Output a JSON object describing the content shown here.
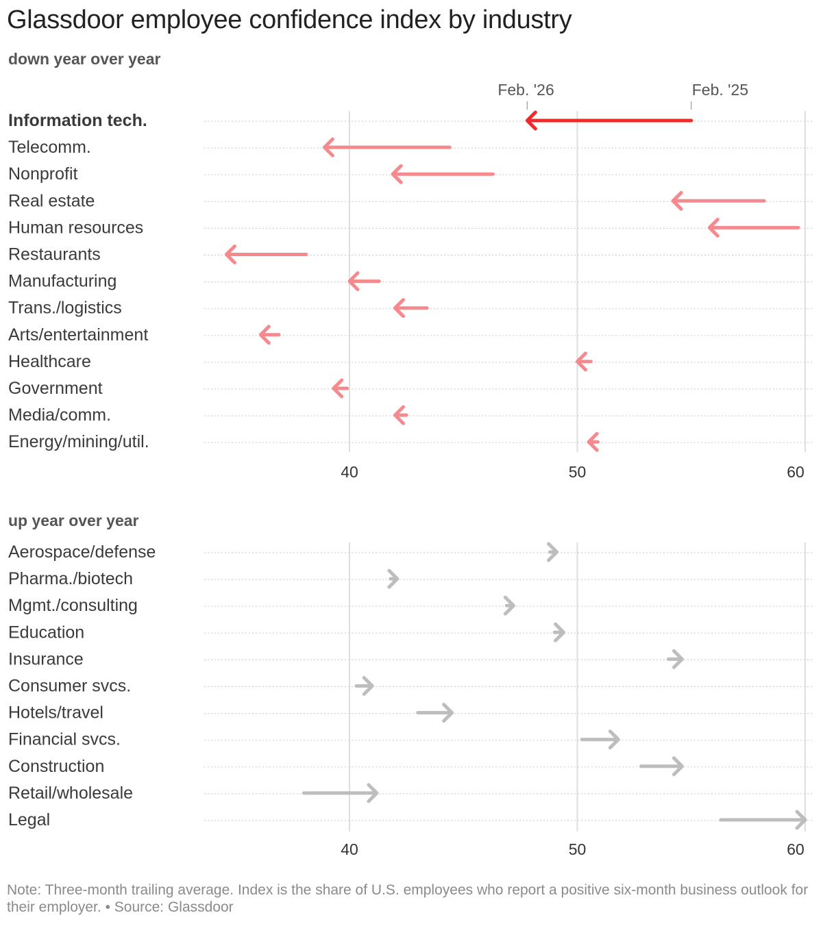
{
  "title": "Glassdoor employee confidence index by industry",
  "note": "Note: Three-month trailing average. Index is the share of U.S. employees who report a positive six-month business outlook for their employer. • Source: Glassdoor",
  "colors": {
    "highlight": "#ee2a2a",
    "down": "#f48a8e",
    "up": "#bdbdbd",
    "grid": "#dedede",
    "rowline": "#d0d0d0"
  },
  "chart_data": [
    {
      "type": "arrow",
      "section_label": "down year over year",
      "legend": {
        "end_label": "Feb. '26",
        "start_label": "Feb. '25"
      },
      "x_ticks": [
        40,
        50,
        60
      ],
      "xlim": [
        33.5,
        60.5
      ],
      "series": [
        {
          "category": "Information tech.",
          "feb25": 55.0,
          "feb26": 47.8,
          "highlight": true
        },
        {
          "category": "Telecomm.",
          "feb25": 44.4,
          "feb26": 38.9
        },
        {
          "category": "Nonprofit",
          "feb25": 46.3,
          "feb26": 41.9
        },
        {
          "category": "Real estate",
          "feb25": 58.2,
          "feb26": 54.2
        },
        {
          "category": "Human resources",
          "feb25": 59.7,
          "feb26": 55.8
        },
        {
          "category": "Restaurants",
          "feb25": 38.1,
          "feb26": 34.6
        },
        {
          "category": "Manufacturing",
          "feb25": 41.3,
          "feb26": 40.0
        },
        {
          "category": "Trans./logistics",
          "feb25": 43.4,
          "feb26": 42.0
        },
        {
          "category": "Arts/entertainment",
          "feb25": 36.9,
          "feb26": 36.1
        },
        {
          "category": "Healthcare",
          "feb25": 50.6,
          "feb26": 50.0
        },
        {
          "category": "Government",
          "feb25": 39.9,
          "feb26": 39.3
        },
        {
          "category": "Media/comm.",
          "feb25": 42.5,
          "feb26": 42.0
        },
        {
          "category": "Energy/mining/util.",
          "feb25": 50.9,
          "feb26": 50.5
        }
      ]
    },
    {
      "type": "arrow",
      "section_label": "up year over year",
      "x_ticks": [
        40,
        50,
        60
      ],
      "xlim": [
        33.5,
        60.5
      ],
      "series": [
        {
          "category": "Aerospace/defense",
          "feb25": 48.8,
          "feb26": 49.1
        },
        {
          "category": "Pharma./biotech",
          "feb25": 41.8,
          "feb26": 42.1
        },
        {
          "category": "Mgmt./consulting",
          "feb25": 46.9,
          "feb26": 47.2
        },
        {
          "category": "Education",
          "feb25": 49.0,
          "feb26": 49.4
        },
        {
          "category": "Insurance",
          "feb25": 54.0,
          "feb26": 54.6
        },
        {
          "category": "Consumer svcs.",
          "feb25": 40.3,
          "feb26": 41.0
        },
        {
          "category": "Hotels/travel",
          "feb25": 43.0,
          "feb26": 44.5
        },
        {
          "category": "Financial svcs.",
          "feb25": 50.2,
          "feb26": 51.8
        },
        {
          "category": "Construction",
          "feb25": 52.8,
          "feb26": 54.6
        },
        {
          "category": "Retail/wholesale",
          "feb25": 38.0,
          "feb26": 41.2
        },
        {
          "category": "Legal",
          "feb25": 56.3,
          "feb26": 60.0
        }
      ]
    }
  ]
}
